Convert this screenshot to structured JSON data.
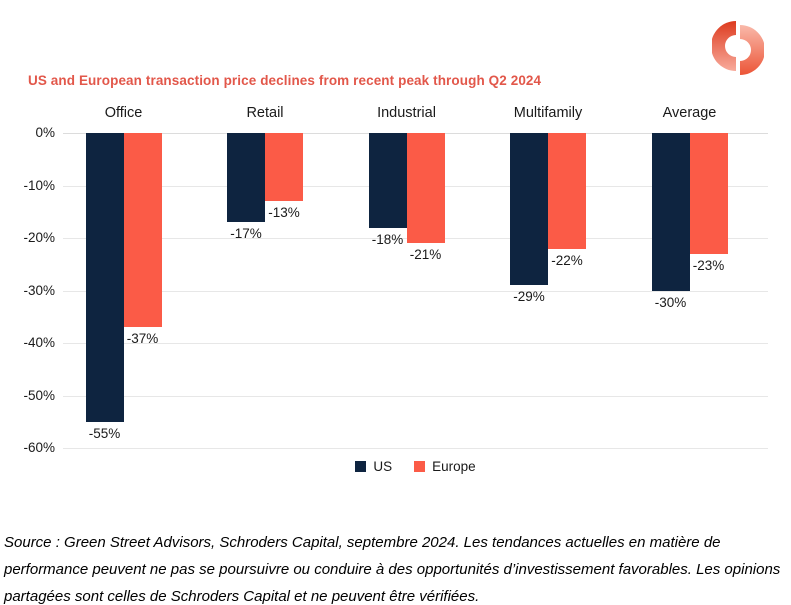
{
  "title": "US and European transaction price declines from recent peak through Q2 2024",
  "logo": {
    "name": "schroders-capital-logo",
    "colors": {
      "left_top": "#dd3b1f",
      "left_bottom": "#f8ab9c",
      "right_top": "#f9b9aa",
      "right_bottom": "#ec5537"
    }
  },
  "chart_data": {
    "type": "bar",
    "title": "US and European transaction price declines from recent peak through Q2 2024",
    "categories": [
      "Office",
      "Retail",
      "Industrial",
      "Multifamily",
      "Average"
    ],
    "series": [
      {
        "name": "US",
        "color": "#0e2440",
        "values": [
          -55,
          -17,
          -18,
          -29,
          -30
        ]
      },
      {
        "name": "Europe",
        "color": "#fb5b47",
        "values": [
          -37,
          -13,
          -21,
          -22,
          -23
        ]
      }
    ],
    "data_labels": {
      "US": [
        "-55%",
        "-17%",
        "-18%",
        "-29%",
        "-30%"
      ],
      "Europe": [
        "-37%",
        "-13%",
        "-21%",
        "-22%",
        "-23%"
      ]
    },
    "ylim": [
      -60,
      0
    ],
    "ytick_values": [
      0,
      -10,
      -20,
      -30,
      -40,
      -50,
      -60
    ],
    "ytick_labels": [
      "0%",
      "-10%",
      "-20%",
      "-30%",
      "-40%",
      "-50%",
      "-60%"
    ],
    "grid": true,
    "legend_position": "bottom"
  },
  "legend": {
    "items": [
      {
        "label": "US",
        "color": "#0e2440"
      },
      {
        "label": "Europe",
        "color": "#fb5b47"
      }
    ]
  },
  "source_text": "Source : Green Street Advisors, Schroders Capital, septembre 2024. Les tendances actuelles en matière de performance peuvent ne pas se poursuivre ou conduire à des opportunités d’investissement favorables. Les opinions partagées sont celles de Schroders Capital et ne peuvent être vérifiées.",
  "styles": {
    "title_color": "#e2574a",
    "gridline_color": "#e7e7e7",
    "text_color": "#1a1a1a"
  }
}
